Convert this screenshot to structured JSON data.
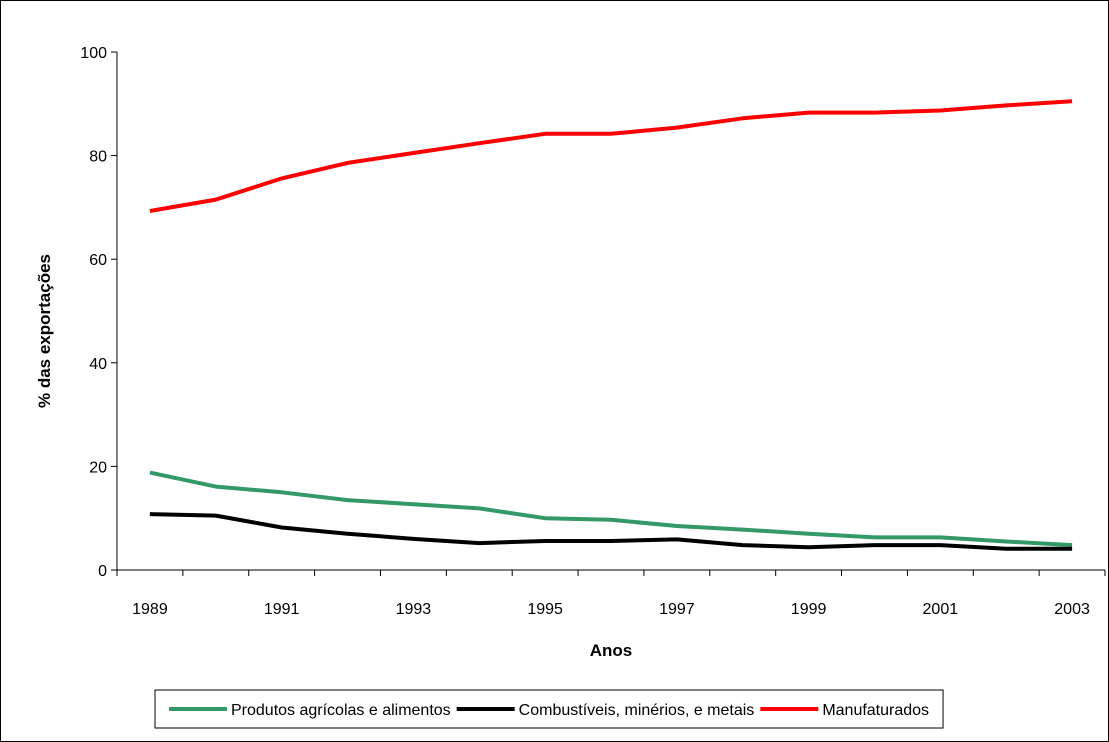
{
  "chart_data": {
    "type": "line",
    "title": "",
    "xlabel": "Anos",
    "ylabel": "% das exportações",
    "x": [
      1989,
      1990,
      1991,
      1992,
      1993,
      1994,
      1995,
      1996,
      1997,
      1998,
      1999,
      2000,
      2001,
      2002,
      2003
    ],
    "xticks": [
      "1989",
      "1991",
      "1993",
      "1995",
      "1997",
      "1999",
      "2001",
      "2003"
    ],
    "yticks": [
      "0",
      "20",
      "40",
      "60",
      "80",
      "100"
    ],
    "ylim": [
      0,
      100
    ],
    "grid": false,
    "legend_position": "bottom",
    "series": [
      {
        "name": "Produtos agrícolas e alimentos",
        "color": "#339966",
        "values": [
          18.8,
          16.1,
          15.0,
          13.5,
          12.7,
          11.9,
          10.0,
          9.7,
          8.5,
          7.8,
          7.0,
          6.3,
          6.3,
          5.5,
          4.8
        ]
      },
      {
        "name": "Combustíveis, minérios, e metais",
        "color": "#000000",
        "values": [
          10.8,
          10.5,
          8.2,
          7.0,
          6.0,
          5.2,
          5.6,
          5.6,
          5.9,
          4.8,
          4.4,
          4.8,
          4.8,
          4.1,
          4.1
        ]
      },
      {
        "name": "Manufaturados",
        "color": "#ff0000",
        "values": [
          69.3,
          71.5,
          75.6,
          78.6,
          80.5,
          82.4,
          84.2,
          84.2,
          85.4,
          87.2,
          88.3,
          88.3,
          88.7,
          89.7,
          90.5
        ]
      }
    ]
  }
}
